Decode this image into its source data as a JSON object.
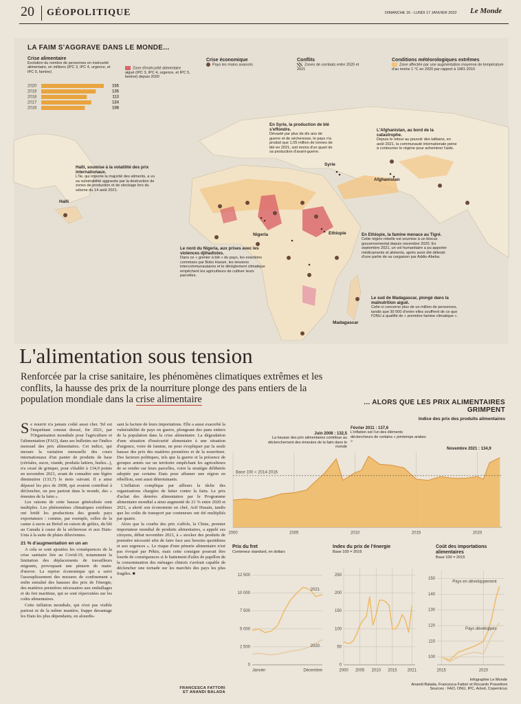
{
  "header": {
    "page_number": "20",
    "section": "GÉOPOLITIQUE",
    "date": "DIMANCHE 16 - LUNDI 17 JANVIER 2022",
    "masthead": "Le Monde"
  },
  "map": {
    "title": "LA FAIM S'AGGRAVE DANS LE MONDE...",
    "legend": {
      "food_zone": "Zone d'insécurité alimentaire aiguë (IPC 3, IPC 4, urgence, et IPC 5, famine) depuis 2020",
      "economic_title": "Crise économique",
      "economic_item": "Pays les moins avancés",
      "conflicts_title": "Conflits",
      "conflicts_item": "Zones de combats entre 2020 et 2021",
      "weather_title": "Conditions météorologiques extrêmes",
      "weather_item": "Zone affectée par une augmentation moyenne de température d'au moins 1 °C en 2020 par rapport à 1981-2010"
    },
    "callouts": [
      {
        "title": "En Syrie, la production de blé s'effondre.",
        "text": "Dévasté par plus de dix ans de guerre et de sécheresse, le pays n'a produit que 1,05 million de tonnes de blé en 2021, soit moins d'un quart de sa production d'avant-guerre."
      },
      {
        "title": "L'Afghanistan, au bord de la catastrophe.",
        "text": "Depuis le retour au pouvoir des talibans, en août 2021, la communauté internationale peine à contourner le régime pour acheminer l'aide."
      },
      {
        "title": "Haïti, soumise à la volatilité des prix internationaux.",
        "text": "L'île, qui importe la majorité des aliments, a vu sa vulnérabilité aggravée par la destruction de zones de production et de stockage lors du séisme du 14 août 2021."
      },
      {
        "title": "Le nord du Nigeria, aux prises avec les violences djihadistes.",
        "text": "Dans ce « grenier à blé » du pays, les exactions commises par Boko Haram, les tensions intercommunautaires et le dérèglement climatique empêchent les agriculteurs de cultiver leurs parcelles."
      },
      {
        "title": "En Ethiopie, la famine menace au Tigré.",
        "text": "Cette région rebelle est soumise à un blocus gouvernemental depuis novembre 2020. En septembre 2021, un vol humanitaire a pu apporter médicaments et aliments, après avoir été délesté d'une partie de sa cargaison par Addis-Abeba."
      },
      {
        "title": "Le sud de Madagascar, plongé dans la malnutrition aiguë.",
        "text": "Celle-ci concerne plus de un million de personnes, tandis que 30 000 d'entre elles souffrent de ce que l'ONU a qualifié de « première famine climatique »."
      }
    ],
    "places": [
      "Haïti",
      "Syrie",
      "Afghanistan",
      "Nigeria",
      "Ethiopie",
      "Madagascar"
    ]
  },
  "headline": "L'alimentation sous tension",
  "standfirst": [
    "Renforcée par la crise sanitaire, les phénomènes climatiques extrêmes et les conflits, la hausse des prix de la nourriture plonge des pans entiers de la population mondiale dans la ",
    "crise alimentaire"
  ],
  "article": {
    "column1": [
      "Se nourrir n'a jamais coûté aussi cher. Tel est l'inquiétant constat dressé, fin 2021, par l'Organisation mondiale pour l'agriculture et l'alimentation (FAO), dans ses bulletins sur l'indice mensuel des prix alimentaires. Cet indice, qui mesure la variation mensuelle des cours internationaux d'un panier de produits de base (céréales, sucre, viande, produits laitiers, huiles...), n'a cessé de grimper, pour s'établir à 134,9 points en novembre 2021, avant de connaître une légère diminution (133,7) le mois suivant. Il a ainsi dépassé les pics de 2008, qui avaient contribué à déclencher, un peu partout dans le monde, des « émeutes de la faim ».",
      "Les raisons de cette hausse généralisée sont multiples. Les phénomènes climatiques extrêmes ont bridé les productions des grands pays exportateurs : comme, par exemple, celles de la canne à sucre au Brésil en raison de gelées, du blé au Canada à cause de la sécheresse et aux Etats-Unis à la suite de pluies diluviennes."
    ],
    "subheading": "21 % d'augmentation en un an",
    "column1_after": [
      "A cela se sont ajoutées les conséquences de la crise sanitaire liée au Covid-19, notamment la limitation des déplacements de travailleurs migrants, provoquant une pénurie de main-d'œuvre. La reprise économique qui a suivi l'assouplissement des mesures de confinement a enfin entraîné des hausses des prix de l'énergie, des matières premières nécessaires aux emballages et du fret maritime, qui se sont répercutées sur les coûts alimentaires.",
      "Cette inflation mondiale, qui n'est pas visible partout ni de la même manière, frappe davantage les Etats les plus dépendants, en alourdis-"
    ],
    "column2": [
      "sant la facture de leurs importations. Elle a aussi exacerbé la vulnérabilité de pays en guerre, plongeant des pans entiers de la population dans la crise alimentaire. La dégradation d'une situation d'insécurité alimentaire à une situation d'urgence, voire de famine, ne peut s'expliquer par la seule hausse des prix des matières premières et de la nourriture. Des facteurs politiques, tels que la guerre et la présence de groupes armés sur un territoire empêchant les agriculteurs de se rendre sur leurs parcelles, voire la stratégie délibérée adoptée par certains Etats pour affamer une région en rébellion, sont aussi déterminants.",
      "L'inflation complique par ailleurs la tâche des organisations chargées de lutter contre la faim. Le prix d'achat des denrées alimentaires par le Programme alimentaire mondial a ainsi augmenté de 21 % entre 2020 et 2021, a alerté son économiste en chef, Arif Husain, tandis que les coûts de transport par conteneurs ont été multipliés par quatre.",
      "Alors que la courbe des prix s'affole, la Chine, premier importateur mondial de produits alimentaires, a appelé ses citoyens, début novembre 2021, à « stocker des produits de première nécessité afin de faire face aux besoins quotidiens et aux urgences ». Le risque d'une pénurie alimentaire n'est pas évoqué par Pékin, mais cette consigne pourrait être lourde de conséquences si le battement d'ailes de papillon de la consommation des ménages chinois s'avérait capable de déclencher une tornade sur les marchés des pays les plus fragiles. ■"
    ],
    "byline": [
      "FRANCESCA FATTORI",
      "ET ANANDI BALADA"
    ]
  },
  "chart_data": [
    {
      "type": "bar",
      "title": "Crise alimentaire",
      "subtitle": "Evolution du nombre de personnes en insécurité alimentaire, en millions (IPC 3, IPC 4, urgence, et IPC 5, famine)",
      "categories": [
        "2020",
        "2019",
        "2018",
        "2017",
        "2016"
      ],
      "values": [
        155,
        135,
        113,
        124,
        108
      ],
      "color": "#e9a43f"
    },
    {
      "type": "area",
      "title": "... ALORS QUE LES PRIX ALIMENTAIRES GRIMPENT",
      "subtitle": "Indice des prix des produits alimentaires",
      "x": [
        2000,
        2001,
        2002,
        2003,
        2004,
        2005,
        2006,
        2007,
        2007.5,
        2008.45,
        2009,
        2010,
        2010.5,
        2011.1,
        2012,
        2013,
        2014,
        2015,
        2016,
        2017,
        2018,
        2019,
        2020,
        2020.5,
        2021,
        2021.85
      ],
      "values": [
        53,
        55,
        53,
        58,
        65,
        67,
        72,
        94,
        105,
        132.5,
        91,
        106,
        110,
        137.6,
        122,
        120,
        115,
        93,
        91,
        98,
        95,
        95,
        98,
        93,
        125,
        134.9
      ],
      "color": "#f0b860",
      "xlim": [
        2000,
        2022
      ],
      "ylim": [
        0,
        145
      ],
      "xticks": [
        2000,
        2005,
        2010,
        2015,
        2020
      ],
      "grid": true,
      "reference": {
        "value": 100,
        "label": "Base 100 = 2014-2016"
      },
      "annotations": [
        {
          "label": "Juin 2008 : 132,5",
          "text": "La hausse des prix alimentaires contribue au déclenchement des émeutes de la faim dans le monde"
        },
        {
          "label": "Février 2011 : 137,6",
          "text": "L'inflation est l'un des éléments déclencheurs de certains « printemps arabes »"
        },
        {
          "label": "Novembre 2021 : 134,9",
          "text": ""
        }
      ]
    },
    {
      "type": "line",
      "title": "Prix du fret",
      "subtitle": "Conteneur standard, en dollars",
      "categories": [
        "Janvier",
        null,
        null,
        null,
        null,
        null,
        null,
        null,
        null,
        null,
        null,
        "Décembre"
      ],
      "series": [
        {
          "name": "2020",
          "color": "#e8c9a0",
          "values": [
            1500,
            1600,
            1500,
            1400,
            1500,
            1700,
            1900,
            2000,
            2200,
            2500,
            3000,
            3500
          ]
        },
        {
          "name": "2021",
          "color": "#f0b860",
          "values": [
            4800,
            5000,
            4500,
            4700,
            5500,
            7500,
            9000,
            10000,
            10800,
            10500,
            9500,
            9800
          ]
        }
      ],
      "ylim": [
        0,
        13500
      ],
      "yticks": [
        0,
        {
          "value": 2500,
          "label": "2 500"
        },
        {
          "value": 5000,
          "label": "5 000"
        },
        {
          "value": 7500,
          "label": "7 500"
        },
        {
          "value": 10000,
          "label": "10 000"
        },
        {
          "value": 12500,
          "label": "12 500"
        }
      ],
      "grid": true
    },
    {
      "type": "line",
      "title": "Index du prix de l'énergie",
      "subtitle": "Base 100 = 2016",
      "x": [
        2000,
        2001,
        2002,
        2003,
        2004,
        2005,
        2006,
        2007,
        2008,
        2009,
        2010,
        2011,
        2012,
        2013,
        2014,
        2015,
        2016,
        2017,
        2018,
        2019,
        2020,
        2021
      ],
      "series": [
        {
          "name": null,
          "color": "#f0b860",
          "values": [
            65,
            60,
            60,
            68,
            85,
            110,
            125,
            135,
            190,
            110,
            140,
            180,
            180,
            175,
            165,
            100,
            100,
            115,
            140,
            125,
            90,
            165
          ]
        }
      ],
      "xlim": [
        2000,
        2022
      ],
      "ylim": [
        0,
        270
      ],
      "xticks": [
        2000,
        2005,
        2010,
        2015,
        2021
      ],
      "yticks": [
        0,
        50,
        100,
        150,
        200,
        250
      ],
      "grid": true
    },
    {
      "type": "line",
      "title": "Coût des importations alimentaires",
      "subtitle": "Base 100 = 2015",
      "x": [
        2015,
        2016,
        2017,
        2018,
        2019,
        2020,
        2020.5,
        2021,
        2021.5,
        2021.9
      ],
      "series": [
        {
          "name": "Pays en développement",
          "color": "#f0b860",
          "values": [
            100,
            98,
            103,
            105,
            107,
            110,
            116,
            125,
            138,
            145
          ]
        },
        {
          "name": "Pays développés",
          "color": "#e8c9a0",
          "values": [
            100,
            97,
            100,
            102,
            103,
            102,
            108,
            114,
            118,
            122
          ]
        }
      ],
      "xlim": [
        2014.5,
        2022.5
      ],
      "ylim": [
        95,
        155
      ],
      "xticks": [
        2015,
        2020
      ],
      "yticks": [
        100,
        110,
        120,
        130,
        140,
        150
      ],
      "grid": true
    }
  ],
  "credits": [
    "Infographie Le Monde",
    "Anandi Balada, Francesca Fattori et Riccardo Pravettoni",
    "Sources : FAO, ONU, IPC, Acled, Copernicus"
  ]
}
